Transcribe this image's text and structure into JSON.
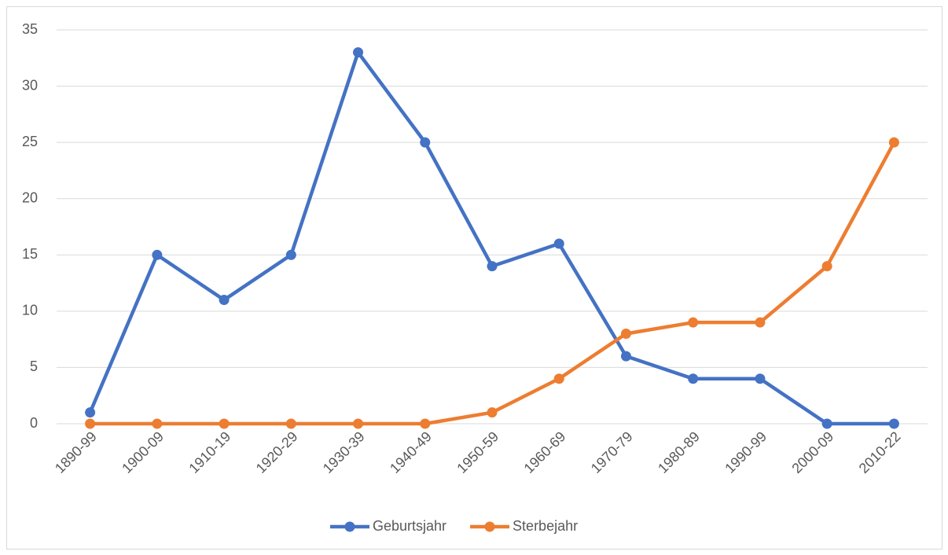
{
  "chart_data": {
    "type": "line",
    "categories": [
      "1890-99",
      "1900-09",
      "1910-19",
      "1920-29",
      "1930-39",
      "1940-49",
      "1950-59",
      "1960-69",
      "1970-79",
      "1980-89",
      "1990-99",
      "2000-09",
      "2010-22"
    ],
    "series": [
      {
        "name": "Geburtsjahr",
        "color": "#4472c4",
        "values": [
          1,
          15,
          11,
          15,
          33,
          25,
          14,
          16,
          6,
          4,
          4,
          0,
          0
        ]
      },
      {
        "name": "Sterbejahr",
        "color": "#ed7d31",
        "values": [
          0,
          0,
          0,
          0,
          0,
          0,
          1,
          4,
          8,
          9,
          9,
          14,
          25
        ]
      }
    ],
    "ylim": [
      0,
      35
    ],
    "yticks": [
      0,
      5,
      10,
      15,
      20,
      25,
      30,
      35
    ],
    "grid": true,
    "legend": "bottom"
  }
}
